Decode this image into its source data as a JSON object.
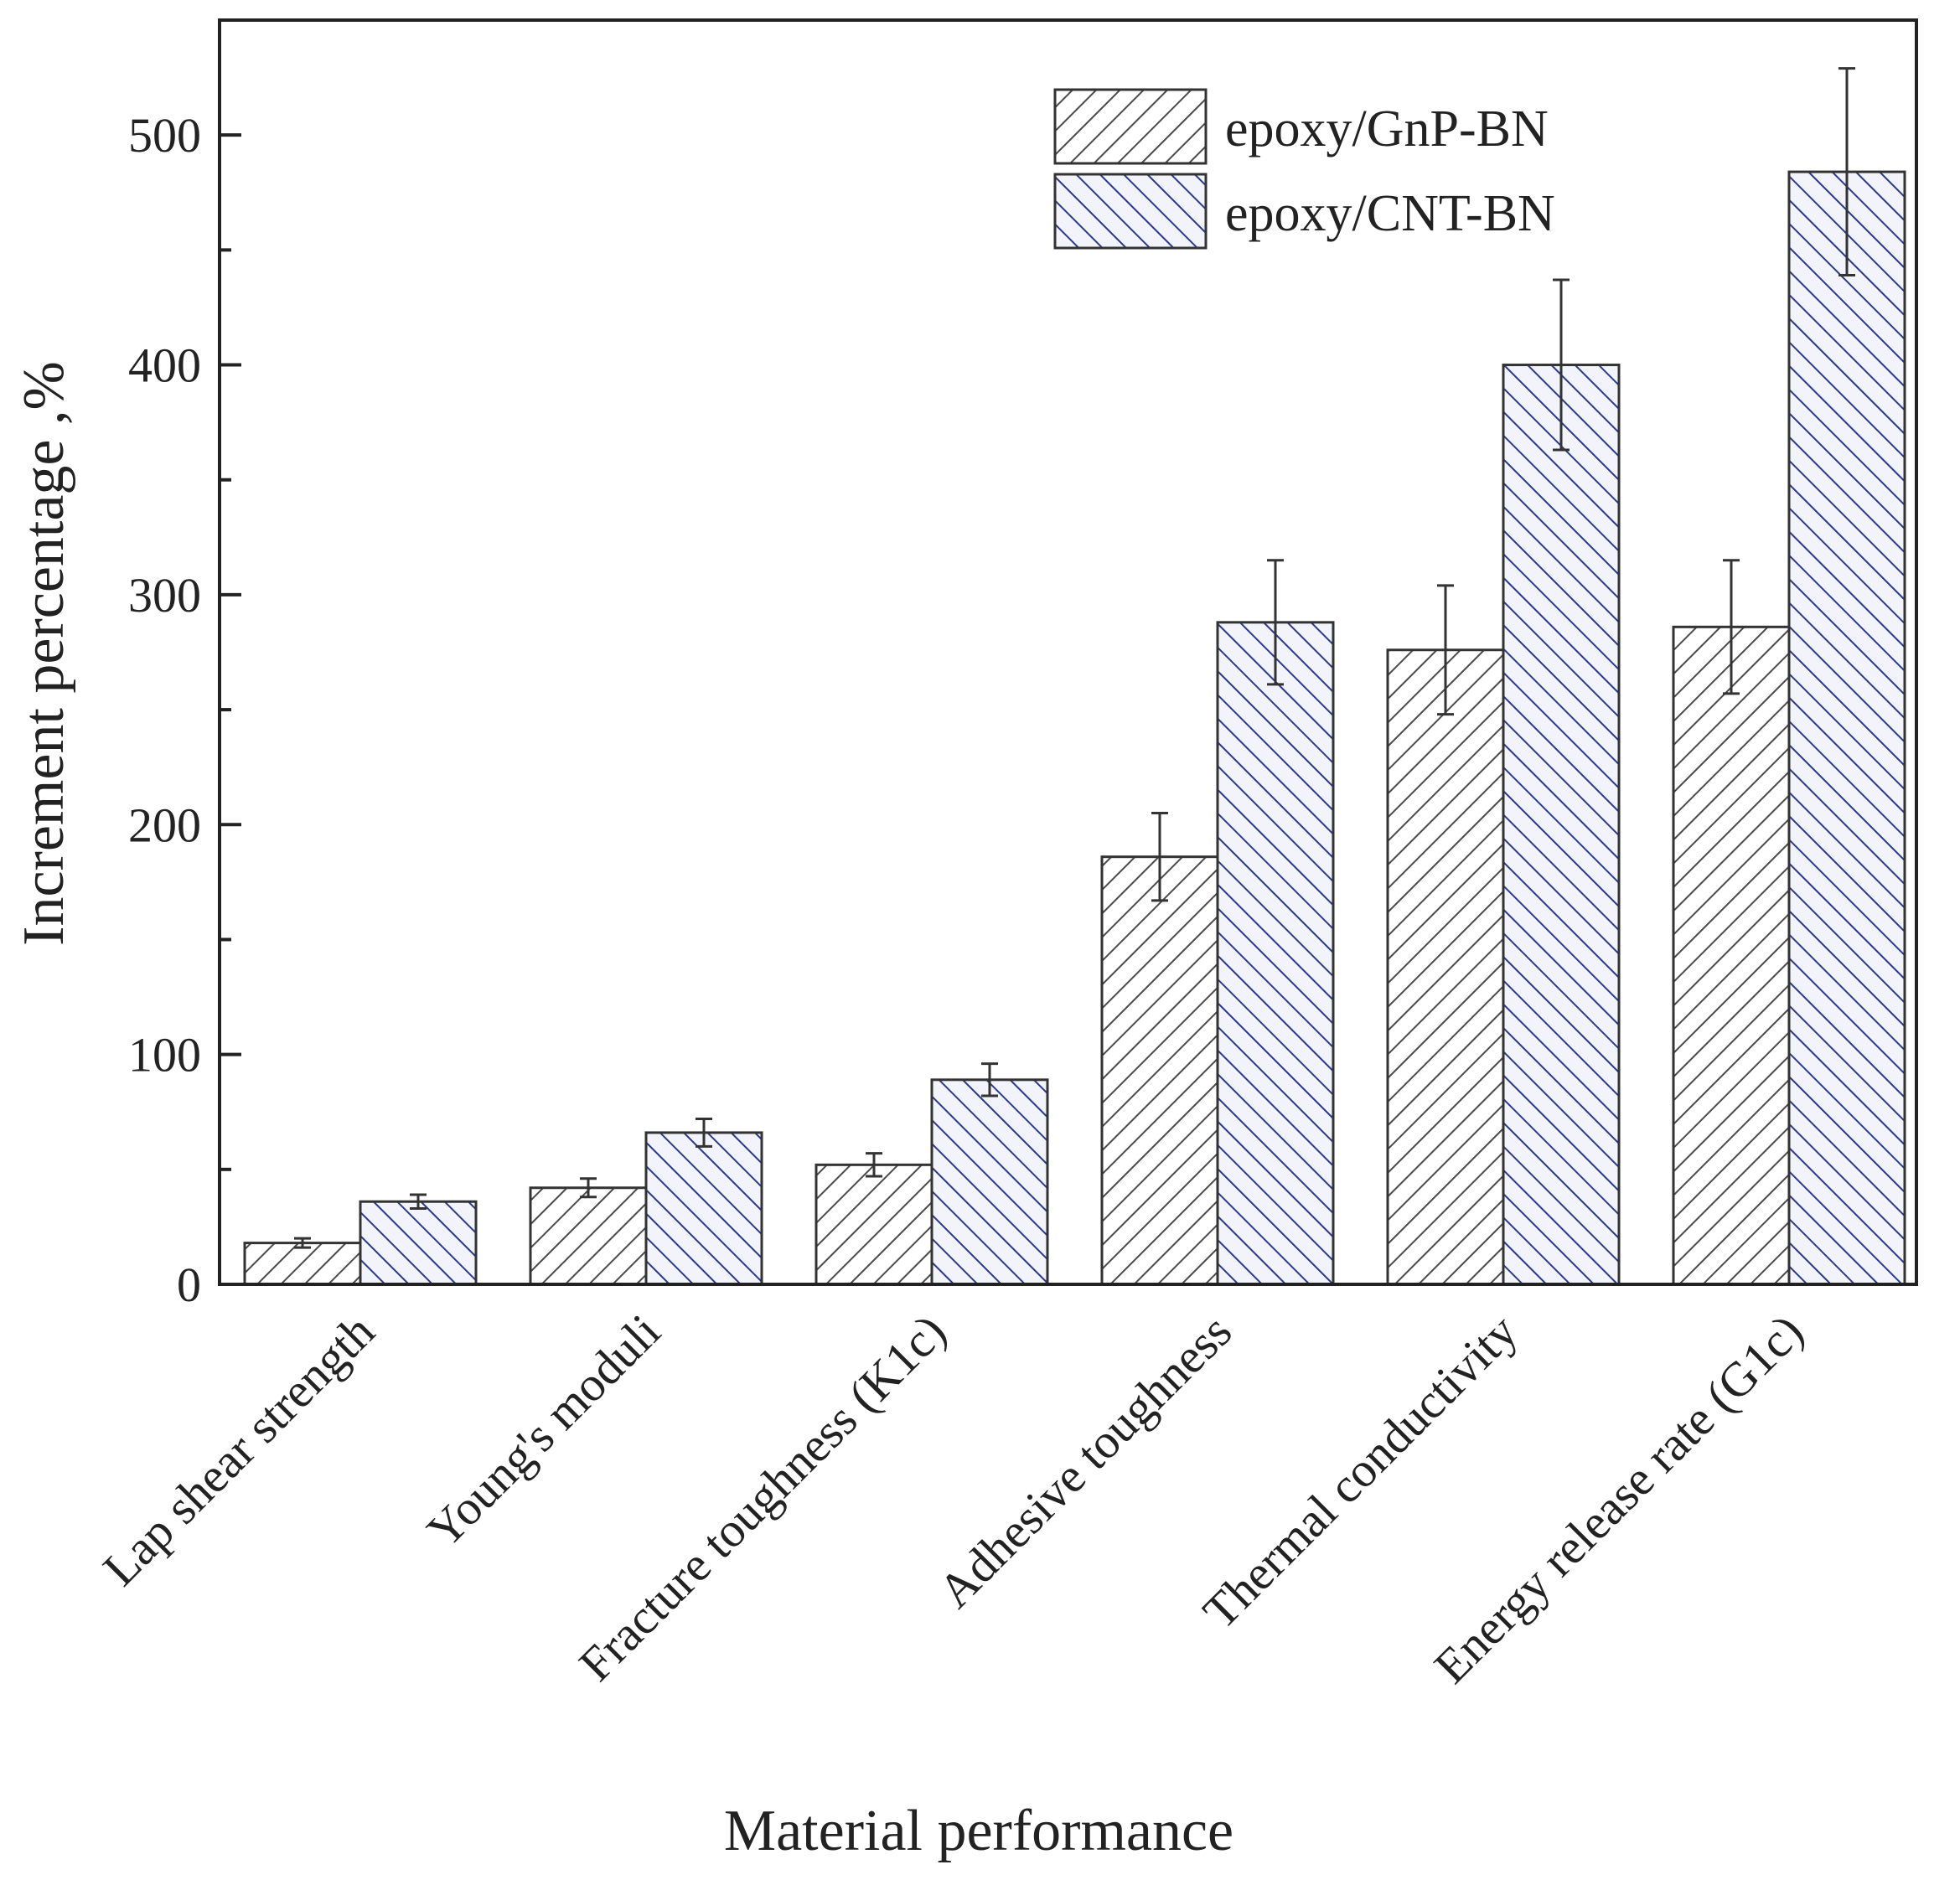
{
  "chart_data": {
    "type": "bar",
    "title": "",
    "xlabel": "Material performance",
    "ylabel": "Increment percentage ,%",
    "ylim": [
      0,
      550
    ],
    "yticks": [
      0,
      100,
      200,
      300,
      400,
      500
    ],
    "categories": [
      "Lap shear strength",
      "Young's moduli",
      "Fracture toughness (K1c)",
      "Adhesive toughness",
      "Thermal conductivity",
      "Energy release rate (G1c)"
    ],
    "series": [
      {
        "name": "epoxy/GnP-BN",
        "values": [
          18,
          42,
          52,
          186,
          276,
          286
        ],
        "errors": [
          2,
          4,
          5,
          19,
          28,
          29
        ],
        "color": "#ffffff",
        "hatch_color": "#444444"
      },
      {
        "name": "epoxy/CNT-BN",
        "values": [
          36,
          66,
          89,
          288,
          400,
          484
        ],
        "errors": [
          3,
          6,
          7,
          27,
          37,
          45
        ],
        "color": "#eef0fa",
        "hatch_color": "#2a3a8a"
      }
    ],
    "legend_position": "top-right",
    "grid": false
  }
}
